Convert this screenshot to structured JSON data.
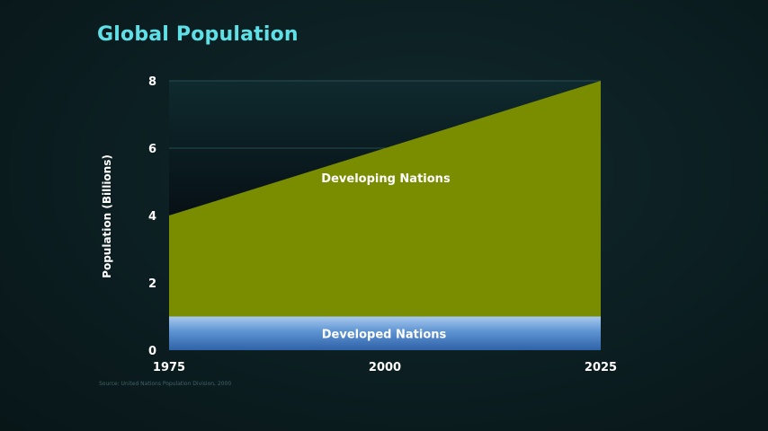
{
  "title": "Global Population",
  "source": "Source: United Nations Population Division, 2000",
  "chart_data": {
    "type": "area",
    "stacked": true,
    "title": "Global Population",
    "xlabel": "",
    "ylabel": "Population (Billions)",
    "x": [
      1975,
      2025
    ],
    "x_ticks": [
      "1975",
      "2000",
      "2025"
    ],
    "y_ticks": [
      "0",
      "2",
      "4",
      "6",
      "8"
    ],
    "xlim": [
      1975,
      2025
    ],
    "ylim": [
      0,
      8
    ],
    "grid": true,
    "series": [
      {
        "name": "Developed Nations",
        "values": [
          1.0,
          1.0
        ],
        "color": "#4a86c8"
      },
      {
        "name": "Developing Nations",
        "values": [
          3.0,
          7.0
        ],
        "color": "#7a8d00"
      }
    ]
  }
}
